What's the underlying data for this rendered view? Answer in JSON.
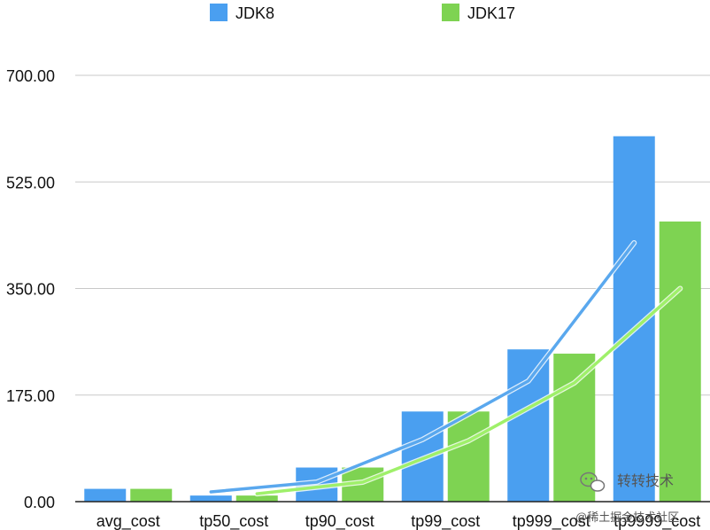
{
  "chart_data": {
    "type": "bar",
    "categories": [
      "avg_cost",
      "tp50_cost",
      "tp90_cost",
      "tp99_cost",
      "tp999_cost",
      "tp9999_cost"
    ],
    "series": [
      {
        "name": "JDK8",
        "color": "#4a9ff0",
        "values": [
          21,
          10,
          56,
          148,
          250,
          600
        ]
      },
      {
        "name": "JDK17",
        "color": "#7ed352",
        "values": [
          21,
          10,
          56,
          148,
          243,
          460
        ]
      }
    ],
    "trendlines": [
      {
        "series": "JDK8",
        "color": "#5aa8ee",
        "x": [
          1,
          2,
          3,
          4,
          5
        ],
        "values": [
          16,
          32,
          102,
          198,
          425
        ]
      },
      {
        "series": "JDK17",
        "color": "#9ff06a",
        "x": [
          1,
          2,
          3,
          4,
          5
        ],
        "values": [
          13,
          32,
          100,
          195,
          350
        ]
      }
    ],
    "ylim": [
      0,
      700
    ],
    "yticks": [
      "0.00",
      "175.00",
      "350.00",
      "525.00",
      "700.00"
    ],
    "ytick_values": [
      0,
      175,
      350,
      525,
      700
    ],
    "grid": true,
    "legend_position": "top-center",
    "title": "",
    "xlabel": "",
    "ylabel": ""
  },
  "watermark": {
    "name": "转转技术",
    "handle": "@稀土掘金技术社区"
  }
}
